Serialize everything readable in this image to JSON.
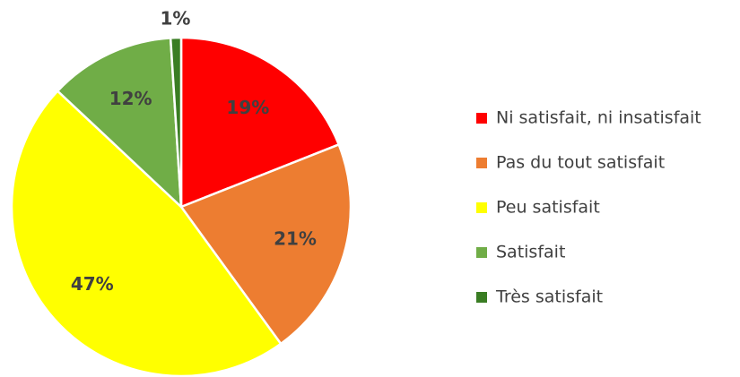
{
  "chart_data": {
    "type": "pie",
    "categories": [
      "Ni satisfait, ni insatisfait",
      "Pas du tout satisfait",
      "Peu satisfait",
      "Satisfait",
      "Très satisfait"
    ],
    "values": [
      19,
      21,
      47,
      12,
      1
    ],
    "value_labels": [
      "19%",
      "21%",
      "47%",
      "12%",
      "1%"
    ],
    "colors": [
      "#ff0000",
      "#ed7d31",
      "#ffff00",
      "#70ad47",
      "#3a7d23"
    ],
    "legend": "right"
  }
}
